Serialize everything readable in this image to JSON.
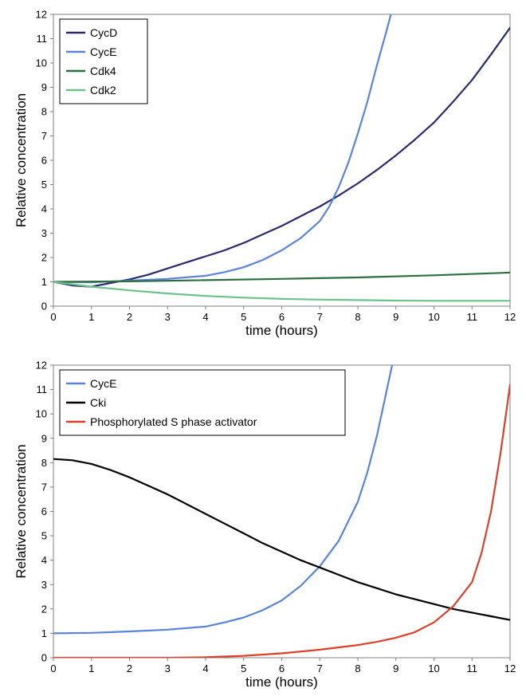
{
  "chart_data": [
    {
      "type": "line",
      "xlabel": "time (hours)",
      "ylabel": "Relative concentration",
      "xlim": [
        0,
        12
      ],
      "ylim": [
        0,
        12
      ],
      "xticks": [
        "0",
        "1",
        "2",
        "3",
        "4",
        "5",
        "6",
        "7",
        "8",
        "9",
        "10",
        "11",
        "12"
      ],
      "yticks": [
        "0",
        "1",
        "2",
        "3",
        "4",
        "5",
        "6",
        "7",
        "8",
        "9",
        "10",
        "11",
        "12"
      ],
      "grid": false,
      "legend_position": "top-left",
      "series": [
        {
          "name": "CycD",
          "color": "#2b2b6b",
          "x": [
            0,
            0.5,
            1,
            1.5,
            2,
            2.5,
            3,
            3.5,
            4,
            4.5,
            5,
            5.5,
            6,
            6.5,
            7,
            7.5,
            8,
            8.5,
            9,
            9.5,
            10,
            10.5,
            11,
            11.5,
            12
          ],
          "y": [
            1.0,
            0.85,
            0.8,
            0.95,
            1.1,
            1.3,
            1.55,
            1.8,
            2.05,
            2.3,
            2.6,
            2.95,
            3.3,
            3.7,
            4.1,
            4.55,
            5.05,
            5.6,
            6.2,
            6.85,
            7.55,
            8.4,
            9.3,
            10.35,
            11.45
          ]
        },
        {
          "name": "CycE",
          "color": "#5b84d8",
          "x": [
            0,
            1,
            2,
            3,
            4,
            4.5,
            5,
            5.5,
            6,
            6.5,
            7,
            7.25,
            7.5,
            7.75,
            8,
            8.25,
            8.5,
            8.75,
            8.87
          ],
          "y": [
            1.0,
            0.98,
            1.05,
            1.12,
            1.25,
            1.4,
            1.6,
            1.9,
            2.3,
            2.8,
            3.5,
            4.1,
            4.9,
            5.9,
            7.1,
            8.4,
            9.9,
            11.3,
            12.0
          ]
        },
        {
          "name": "Cdk4",
          "color": "#2e6e3e",
          "x": [
            0,
            2,
            4,
            6,
            8,
            10,
            12
          ],
          "y": [
            1.0,
            1.02,
            1.07,
            1.12,
            1.18,
            1.27,
            1.38
          ]
        },
        {
          "name": "Cdk2",
          "color": "#6cc28a",
          "x": [
            0,
            1,
            2,
            3,
            4,
            5,
            6,
            7,
            8,
            9,
            10,
            11,
            12
          ],
          "y": [
            1.0,
            0.8,
            0.65,
            0.52,
            0.42,
            0.35,
            0.3,
            0.27,
            0.25,
            0.23,
            0.22,
            0.22,
            0.22
          ]
        }
      ]
    },
    {
      "type": "line",
      "xlabel": "time (hours)",
      "ylabel": "Relative concentration",
      "xlim": [
        0,
        12
      ],
      "ylim": [
        0,
        12
      ],
      "xticks": [
        "0",
        "1",
        "2",
        "3",
        "4",
        "5",
        "6",
        "7",
        "8",
        "9",
        "10",
        "11",
        "12"
      ],
      "yticks": [
        "0",
        "1",
        "2",
        "3",
        "4",
        "5",
        "6",
        "7",
        "8",
        "9",
        "10",
        "11",
        "12"
      ],
      "grid": false,
      "legend_position": "top-left",
      "series": [
        {
          "name": "CycE",
          "color": "#5b84d8",
          "x": [
            0,
            1,
            2,
            3,
            4,
            4.5,
            5,
            5.5,
            6,
            6.5,
            7,
            7.5,
            8,
            8.25,
            8.5,
            8.75,
            8.9
          ],
          "y": [
            1.0,
            1.02,
            1.08,
            1.15,
            1.28,
            1.45,
            1.65,
            1.95,
            2.35,
            2.95,
            3.75,
            4.8,
            6.4,
            7.6,
            9.1,
            10.9,
            12.0
          ]
        },
        {
          "name": "Cki",
          "color": "#000000",
          "x": [
            0,
            0.5,
            1,
            1.5,
            2,
            2.5,
            3,
            3.5,
            4,
            4.5,
            5,
            5.5,
            6,
            6.5,
            7,
            7.5,
            8,
            8.5,
            9,
            9.5,
            10,
            10.5,
            11,
            11.5,
            12
          ],
          "y": [
            8.15,
            8.1,
            7.95,
            7.7,
            7.4,
            7.05,
            6.7,
            6.3,
            5.9,
            5.5,
            5.1,
            4.7,
            4.35,
            4.0,
            3.7,
            3.4,
            3.1,
            2.85,
            2.6,
            2.4,
            2.2,
            2.0,
            1.85,
            1.7,
            1.55
          ]
        },
        {
          "name": "Phosphorylated S phase activator",
          "color": "#d9412a",
          "x": [
            0,
            1,
            2,
            3,
            4,
            5,
            6,
            7,
            8,
            8.5,
            9,
            9.5,
            10,
            10.5,
            11,
            11.25,
            11.5,
            11.75,
            12
          ],
          "y": [
            0,
            0,
            0,
            0,
            0.02,
            0.08,
            0.18,
            0.33,
            0.52,
            0.65,
            0.82,
            1.05,
            1.45,
            2.1,
            3.1,
            4.3,
            6.0,
            8.4,
            11.2
          ]
        }
      ]
    }
  ]
}
